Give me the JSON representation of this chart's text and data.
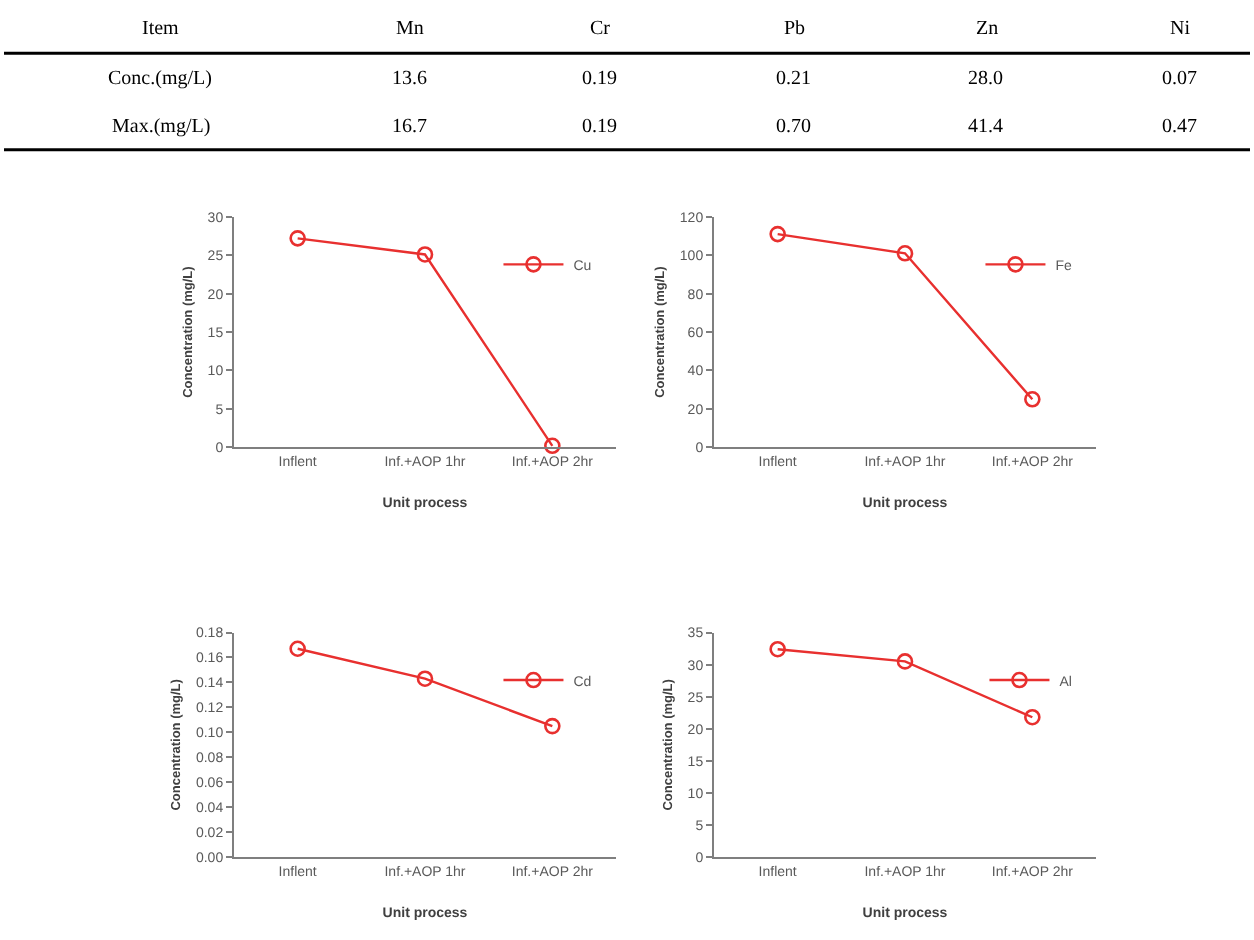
{
  "chart_data": [
    {
      "type": "other",
      "annotations": [
        "Item",
        "Mn",
        "Cr",
        "Pb",
        "Zn",
        "Ni",
        "Conc.(mg/L)",
        "13.6",
        "0.19",
        "0.21",
        "28.0",
        "0.07",
        "Max.(mg/L)",
        "16.7",
        "0.19",
        "0.70",
        "41.4",
        "0.47"
      ]
    },
    {
      "type": "line",
      "xlabel": "Unit process",
      "ylabel": "Concentration (mg/L)",
      "categories": [
        "Inflent",
        "Inf.+AOP 1hr",
        "Inf.+AOP 2hr"
      ],
      "series": [
        {
          "name": "Cu",
          "color": "#e8302f",
          "values": [
            27.2,
            25.1,
            0.2
          ]
        }
      ],
      "ylim": [
        0,
        30
      ],
      "yticks": [
        0,
        5,
        10,
        15,
        20,
        25,
        30
      ],
      "marker": "circle",
      "legend": "top right",
      "grid": false
    },
    {
      "type": "line",
      "xlabel": "Unit process",
      "ylabel": "Concentration (mg/L)",
      "categories": [
        "Inflent",
        "Inf.+AOP 1hr",
        "Inf.+AOP 2hr"
      ],
      "series": [
        {
          "name": "Fe",
          "color": "#e8302f",
          "values": [
            111,
            101,
            25
          ]
        }
      ],
      "ylim": [
        0,
        120
      ],
      "yticks": [
        0,
        20,
        40,
        60,
        80,
        100,
        120
      ],
      "marker": "circle",
      "legend": "top right",
      "grid": false
    },
    {
      "type": "line",
      "xlabel": "Unit process",
      "ylabel": "Concentration (mg/L)",
      "categories": [
        "Inflent",
        "Inf.+AOP 1hr",
        "Inf.+AOP 2hr"
      ],
      "series": [
        {
          "name": "Cd",
          "color": "#e8302f",
          "values": [
            0.167,
            0.143,
            0.105
          ]
        }
      ],
      "ylim": [
        0,
        0.18
      ],
      "yticks": [
        {
          "value": 0,
          "label": "0.00"
        },
        {
          "value": 0.02,
          "label": "0.02"
        },
        {
          "value": 0.04,
          "label": "0.04"
        },
        {
          "value": 0.06,
          "label": "0.06"
        },
        {
          "value": 0.08,
          "label": "0.08"
        },
        {
          "value": 0.1,
          "label": "0.10"
        },
        {
          "value": 0.12,
          "label": "0.12"
        },
        {
          "value": 0.14,
          "label": "0.14"
        },
        {
          "value": 0.16,
          "label": "0.16"
        },
        {
          "value": 0.18,
          "label": "0.18"
        }
      ],
      "marker": "circle",
      "legend": "top right",
      "grid": false
    },
    {
      "type": "line",
      "xlabel": "Unit process",
      "ylabel": "Concentration (mg/L)",
      "categories": [
        "Inflent",
        "Inf.+AOP 1hr",
        "Inf.+AOP 2hr"
      ],
      "series": [
        {
          "name": "Al",
          "color": "#e8302f",
          "values": [
            32.4,
            30.5,
            21.8
          ]
        }
      ],
      "ylim": [
        0,
        35
      ],
      "yticks": [
        0,
        5,
        10,
        15,
        20,
        25,
        30,
        35
      ],
      "marker": "circle",
      "legend": "top right",
      "grid": false
    }
  ]
}
